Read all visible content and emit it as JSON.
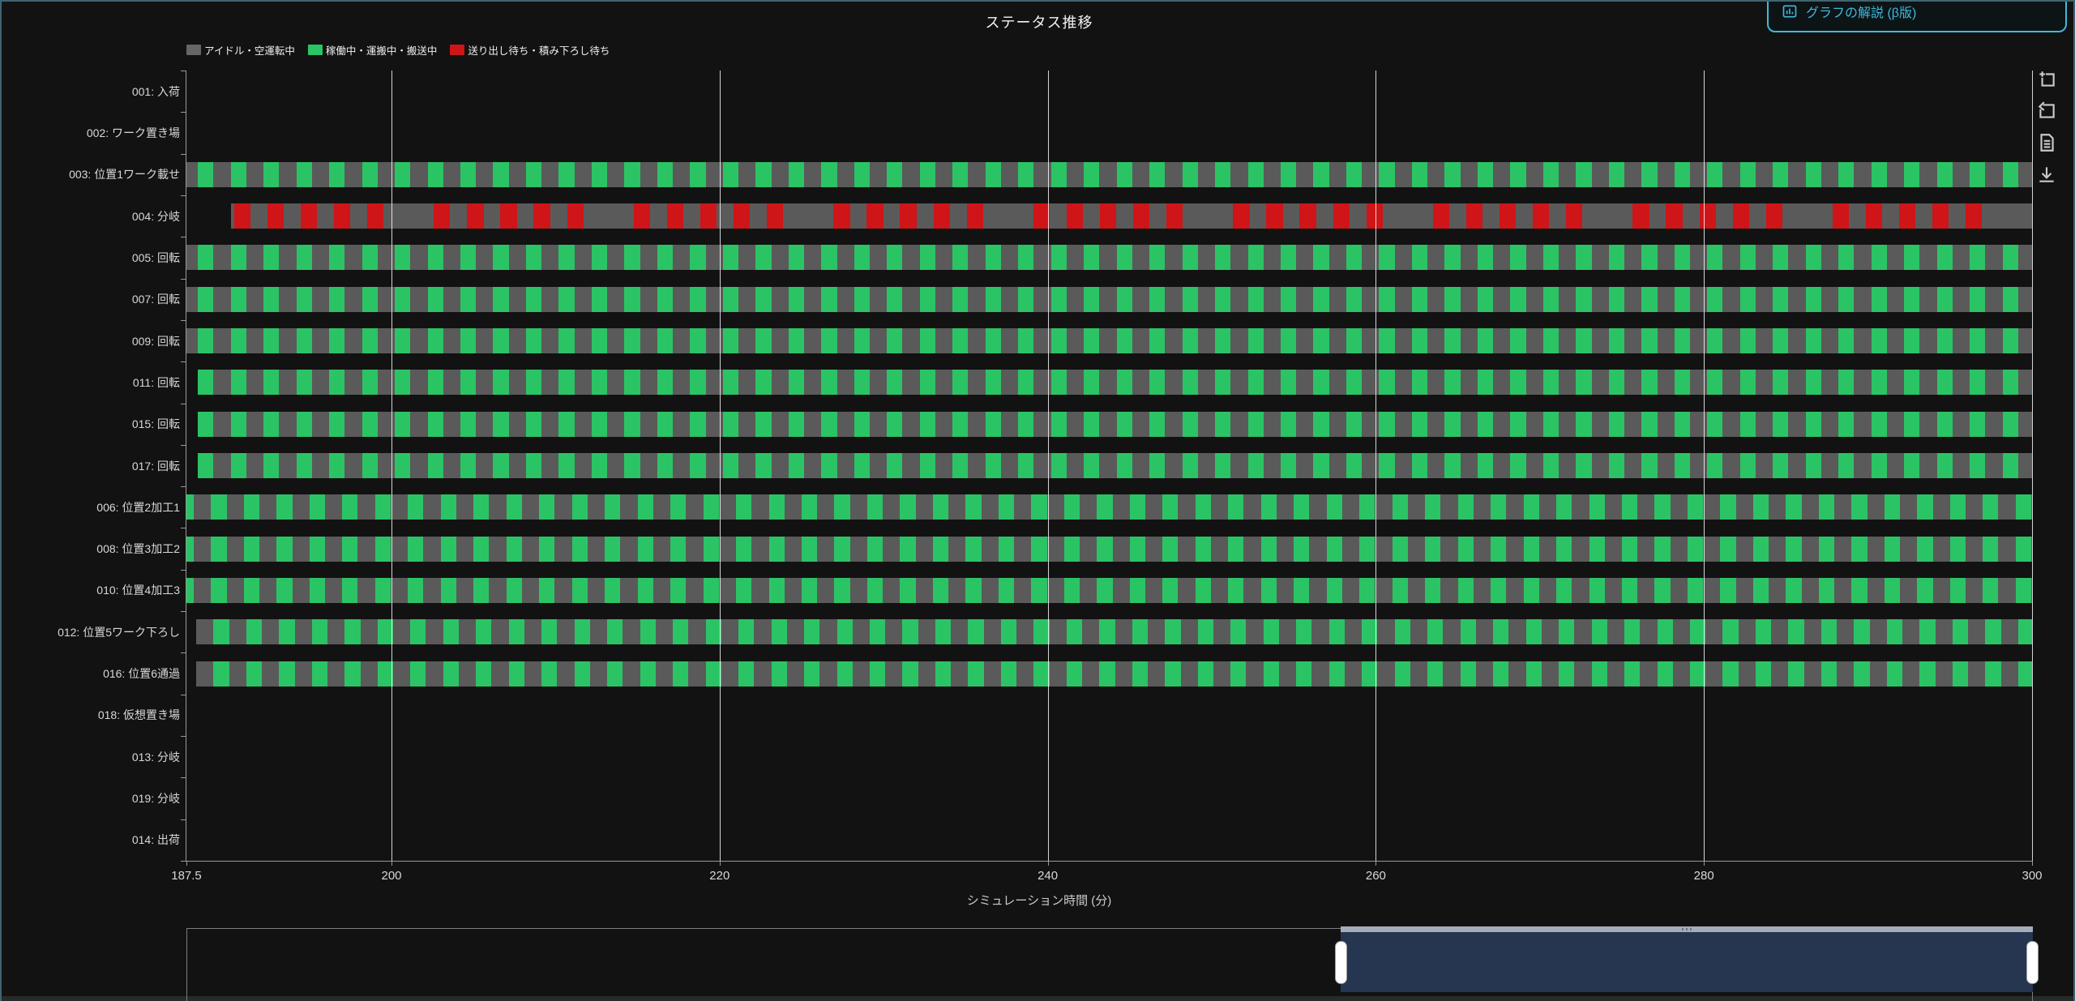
{
  "header": {
    "title": "ステータス推移",
    "help_button": {
      "label": "グラフの解説 (β版)"
    }
  },
  "legend": {
    "items": [
      {
        "label": "アイドル・空運転中",
        "status": "idle"
      },
      {
        "label": "稼働中・運搬中・搬送中",
        "status": "active"
      },
      {
        "label": "送り出し待ち・積み下ろし待ち",
        "status": "waiting"
      }
    ]
  },
  "modebar": {
    "buttons": [
      {
        "name": "zoom-in-icon"
      },
      {
        "name": "reset-axes-icon"
      },
      {
        "name": "report-icon"
      },
      {
        "name": "download-icon"
      }
    ]
  },
  "colors": {
    "idle": "#5a5a5a",
    "active": "#2bc465",
    "waiting": "#cf1518",
    "legend_idle": "#666666",
    "accent_cyan": "#3fb9dc",
    "panel_border": "#3f6570",
    "slider_selection": "#263650",
    "slider_header": "#a5adba",
    "gridline": "rgba(255,255,255,0.82)"
  },
  "chart_data": {
    "type": "bar",
    "subtype": "horizontal-status-timeline",
    "title": "ステータス推移",
    "xlabel": "シミュレーション時間 (分)",
    "x_range": [
      187.5,
      300
    ],
    "x_ticks": [
      187.5,
      200,
      220,
      240,
      260,
      280,
      300
    ],
    "grid": true,
    "legend_position": "top-left",
    "rows": [
      {
        "label": "001: 入荷",
        "bar": null
      },
      {
        "label": "002: ワーク置き場",
        "bar": null
      },
      {
        "label": "003: 位置1ワーク載せ",
        "bar": {
          "base": "idle",
          "start": 187.5,
          "end": 300,
          "stripes": {
            "status": "active",
            "first": 188.2,
            "period": 2.0,
            "width": 0.95
          }
        }
      },
      {
        "label": "004: 分岐",
        "bar": {
          "base": "idle",
          "start": 190.2,
          "end": 300,
          "stripes": {
            "status": "waiting",
            "first": 190.4,
            "period": 2.03,
            "width": 1.0,
            "skip_every": 6
          }
        }
      },
      {
        "label": "005: 回転",
        "bar": {
          "base": "idle",
          "start": 187.5,
          "end": 300,
          "stripes": {
            "status": "active",
            "first": 188.2,
            "period": 2.0,
            "width": 0.95
          }
        }
      },
      {
        "label": "007: 回転",
        "bar": {
          "base": "idle",
          "start": 187.5,
          "end": 300,
          "stripes": {
            "status": "active",
            "first": 188.2,
            "period": 2.0,
            "width": 0.95
          }
        }
      },
      {
        "label": "009: 回転",
        "bar": {
          "base": "idle",
          "start": 187.5,
          "end": 300,
          "stripes": {
            "status": "active",
            "first": 188.2,
            "period": 2.0,
            "width": 0.95
          }
        }
      },
      {
        "label": "011: 回転",
        "bar": {
          "base": "idle",
          "start": 188.2,
          "end": 300,
          "stripes": {
            "status": "active",
            "first": 188.2,
            "period": 2.0,
            "width": 0.95
          }
        }
      },
      {
        "label": "015: 回転",
        "bar": {
          "base": "idle",
          "start": 188.2,
          "end": 300,
          "stripes": {
            "status": "active",
            "first": 188.2,
            "period": 2.0,
            "width": 0.95
          }
        }
      },
      {
        "label": "017: 回転",
        "bar": {
          "base": "idle",
          "start": 188.2,
          "end": 300,
          "stripes": {
            "status": "active",
            "first": 188.2,
            "period": 2.0,
            "width": 0.95
          }
        }
      },
      {
        "label": "006: 位置2加工1",
        "bar": {
          "base": "idle",
          "start": 187.5,
          "end": 300,
          "stripes": {
            "status": "active",
            "first": 187.0,
            "period": 2.0,
            "width": 0.95
          }
        }
      },
      {
        "label": "008: 位置3加工2",
        "bar": {
          "base": "idle",
          "start": 187.5,
          "end": 300,
          "stripes": {
            "status": "active",
            "first": 187.0,
            "period": 2.0,
            "width": 0.95
          }
        }
      },
      {
        "label": "010: 位置4加工3",
        "bar": {
          "base": "idle",
          "start": 187.5,
          "end": 300,
          "stripes": {
            "status": "active",
            "first": 187.0,
            "period": 2.0,
            "width": 0.95
          }
        }
      },
      {
        "label": "012: 位置5ワーク下ろし",
        "bar": {
          "base": "idle",
          "start": 188.1,
          "end": 300,
          "stripes": {
            "status": "active",
            "first": 189.15,
            "period": 2.0,
            "width": 0.95
          }
        }
      },
      {
        "label": "016: 位置6通過",
        "bar": {
          "base": "idle",
          "start": 188.1,
          "end": 300,
          "stripes": {
            "status": "active",
            "first": 189.15,
            "period": 2.0,
            "width": 0.95
          }
        }
      },
      {
        "label": "018: 仮想置き場",
        "bar": null
      },
      {
        "label": "013: 分岐",
        "bar": null
      },
      {
        "label": "019: 分岐",
        "bar": null
      },
      {
        "label": "014: 出荷",
        "bar": null
      }
    ]
  },
  "rangeslider": {
    "full_range": [
      0,
      300
    ],
    "selected_range": [
      187.5,
      300
    ]
  }
}
